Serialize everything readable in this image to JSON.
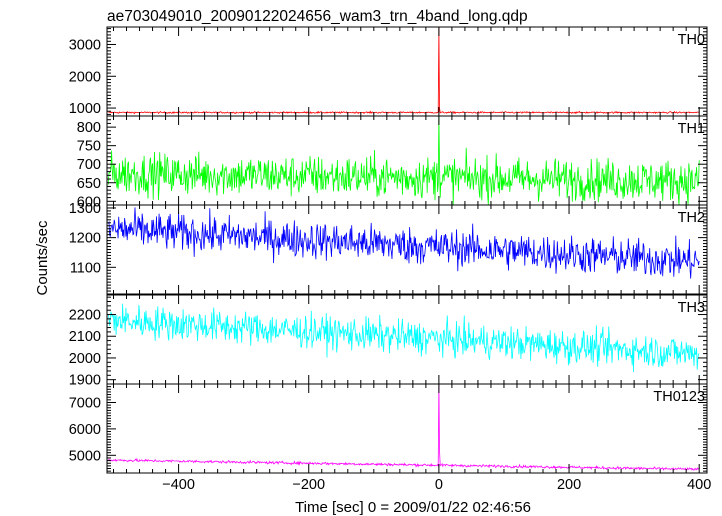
{
  "chart_data": {
    "type": "line",
    "title": "ae703049010_20090122024656_wam3_trn_4band_long.qdp",
    "xlabel": "Time [sec] 0 = 2009/01/22 02:46:56",
    "ylabel": "Counts/sec",
    "xlim": [
      -510,
      412
    ],
    "xticks": [
      -400,
      -200,
      0,
      200,
      400
    ],
    "xtick_labels": [
      "−400",
      "−200",
      "0",
      "200",
      "400"
    ],
    "panels": [
      {
        "name": "TH0",
        "color": "#ff0000",
        "ylim": [
          750,
          3550
        ],
        "yticks": [
          1000,
          2000,
          3000
        ],
        "yticks_minor": [
          800,
          900,
          1100,
          1200,
          1300,
          1400,
          1500,
          1600,
          1700,
          1800,
          1900,
          2100,
          2200,
          2300,
          2400,
          2500,
          2600,
          2700,
          2800,
          2900,
          3100,
          3200,
          3300,
          3400,
          3500
        ],
        "baseline": [
          [
            -510,
            860
          ],
          [
            400,
            860
          ]
        ],
        "noise": 18,
        "spike": {
          "t": 0,
          "peak": 3550,
          "floor": 1000
        }
      },
      {
        "name": "TH1",
        "color": "#00ff00",
        "ylim": [
          590,
          830
        ],
        "yticks": [
          600,
          650,
          700,
          750,
          800
        ],
        "yticks_minor": [
          610,
          620,
          630,
          640,
          660,
          670,
          680,
          690,
          710,
          720,
          730,
          740,
          760,
          770,
          780,
          790,
          810,
          820
        ],
        "baseline": [
          [
            -510,
            675
          ],
          [
            400,
            655
          ]
        ],
        "noise": 40,
        "spike": {
          "t": 0,
          "peak": 830,
          "floor": 700
        }
      },
      {
        "name": "TH2",
        "color": "#0000ff",
        "ylim": [
          1010,
          1310
        ],
        "yticks": [
          1100,
          1200,
          1300
        ],
        "yticks_minor": [
          1020,
          1030,
          1040,
          1050,
          1060,
          1070,
          1080,
          1090,
          1110,
          1120,
          1130,
          1140,
          1150,
          1160,
          1170,
          1180,
          1190,
          1210,
          1220,
          1230,
          1240,
          1250,
          1260,
          1270,
          1280,
          1290
        ],
        "baseline": [
          [
            -510,
            1230
          ],
          [
            400,
            1120
          ]
        ],
        "noise": 45,
        "spike": null
      },
      {
        "name": "TH3",
        "color": "#00ffff",
        "ylim": [
          1880,
          2290
        ],
        "yticks": [
          1900,
          2000,
          2100,
          2200
        ],
        "yticks_minor": [
          1920,
          1940,
          1960,
          1980,
          2020,
          2040,
          2060,
          2080,
          2120,
          2140,
          2160,
          2180,
          2220,
          2240,
          2260,
          2280
        ],
        "baseline": [
          [
            -510,
            2175
          ],
          [
            400,
            2020
          ]
        ],
        "noise": 55,
        "spike": null
      },
      {
        "name": "TH0123",
        "color": "#ff00ff",
        "ylim": [
          4330,
          7700
        ],
        "yticks": [
          5000,
          6000,
          7000
        ],
        "yticks_minor": [
          4400,
          4500,
          4600,
          4700,
          4800,
          4900,
          5100,
          5200,
          5300,
          5400,
          5500,
          5600,
          5700,
          5800,
          5900,
          6100,
          6200,
          6300,
          6400,
          6500,
          6600,
          6700,
          6800,
          6900,
          7100,
          7200,
          7300,
          7400,
          7500,
          7600
        ],
        "baseline": [
          [
            -510,
            4820
          ],
          [
            400,
            4470
          ]
        ],
        "noise": 35,
        "spike": {
          "t": 0,
          "peak": 7700,
          "floor": 5200
        }
      }
    ]
  }
}
